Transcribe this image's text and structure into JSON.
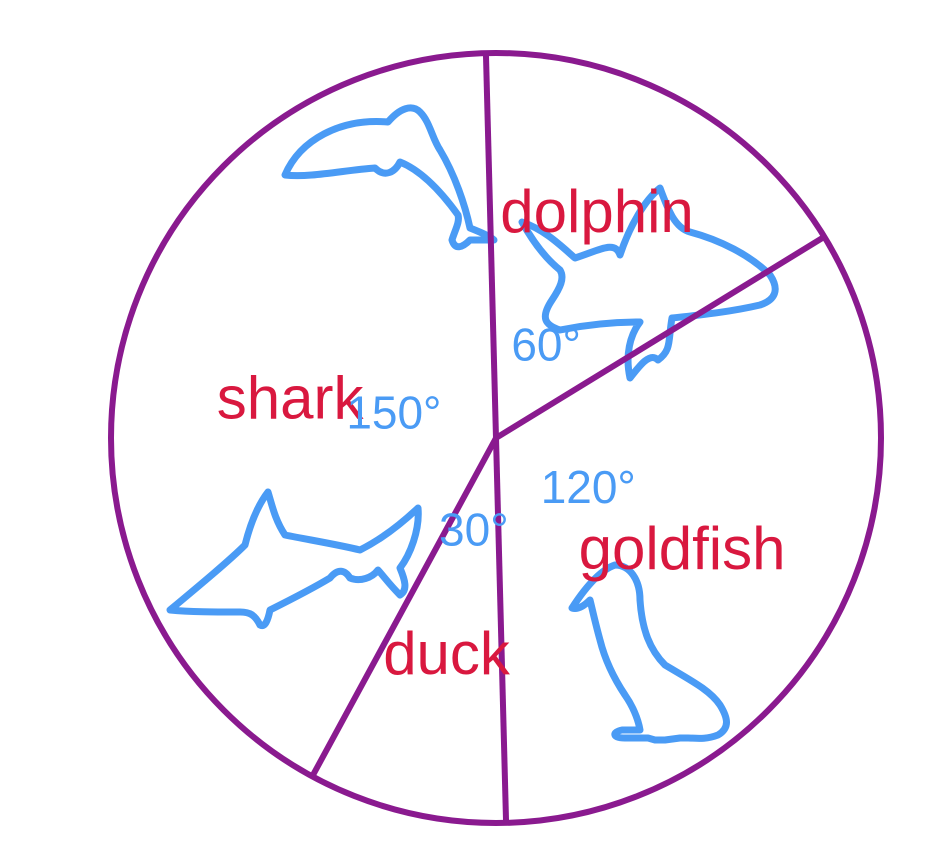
{
  "chart_data": {
    "type": "pie",
    "unit": "°",
    "slices": [
      {
        "label": "dolphin",
        "angle_label": "60°",
        "value": 60,
        "icon": "dolphin-icon"
      },
      {
        "label": "goldfish",
        "angle_label": "120°",
        "value": 120,
        "icon": "goldfish-icon"
      },
      {
        "label": "duck",
        "angle_label": "30°",
        "value": 30,
        "icon": "duck-icon"
      },
      {
        "label": "shark",
        "angle_label": "150°",
        "value": 150,
        "icon": "shark-icon"
      }
    ]
  },
  "colors": {
    "outline": "#8a1a8f",
    "label": "#d9183f",
    "angle": "#4a9bf5",
    "doodle": "#4a9bf5"
  }
}
